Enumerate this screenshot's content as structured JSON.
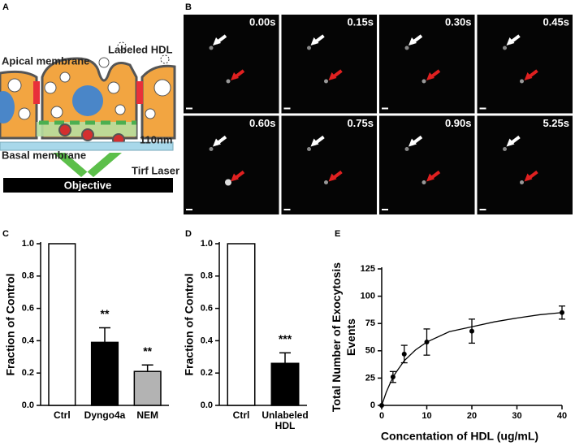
{
  "panel_labels": [
    "A",
    "B",
    "C",
    "D",
    "E"
  ],
  "diagram": {
    "labeled_hdl": "Labeled HDL",
    "apical": "Apical membrane",
    "distance": "110nm",
    "basal": "Basal membrane",
    "laser": "Tirf Laser",
    "objective": "Objective"
  },
  "timelapse": {
    "timestamps": [
      "0.00s",
      "0.15s",
      "0.30s",
      "0.45s",
      "0.60s",
      "0.75s",
      "0.90s",
      "5.25s"
    ]
  },
  "chart_data": [
    {
      "type": "bar",
      "ylabel": "Fraction of Control",
      "categories": [
        "Ctrl",
        "Dyngo4a",
        "NEM"
      ],
      "values": [
        1,
        0.39,
        0.21
      ],
      "errors": [
        null,
        0.09,
        0.04
      ],
      "colors": [
        "#ffffff",
        "#000000",
        "#b3b3b3"
      ],
      "significance": [
        null,
        "**",
        "**"
      ],
      "ylim": [
        0,
        1
      ],
      "yticks": [
        {
          "value": 0,
          "label": "0.0"
        },
        0.2,
        0.4,
        0.6,
        0.8,
        {
          "value": 1,
          "label": "1.0"
        }
      ]
    },
    {
      "type": "bar",
      "ylabel": "Fraction of Control",
      "categories": [
        "Ctrl",
        "Unlabeled HDL"
      ],
      "values": [
        1,
        0.26
      ],
      "errors": [
        null,
        0.065
      ],
      "colors": [
        "#ffffff",
        "#000000"
      ],
      "significance": [
        null,
        "***"
      ],
      "ylim": [
        0,
        1
      ],
      "yticks": [
        {
          "value": 0,
          "label": "0.0"
        },
        0.2,
        0.4,
        0.6,
        0.8,
        {
          "value": 1,
          "label": "1.0"
        }
      ]
    },
    {
      "type": "scatter",
      "xlabel": "Concentation of HDL (ug/mL)",
      "ylabel": "Total Number of Exocytosis Events",
      "series": [
        {
          "mode": "markers",
          "color": "#000000",
          "x": [
            0,
            2.5,
            5,
            10,
            20,
            40
          ],
          "values": [
            0,
            26,
            47,
            58,
            68,
            85
          ],
          "errors": [
            0,
            5,
            8,
            12,
            11,
            6
          ]
        },
        {
          "mode": "line",
          "color": "#000000",
          "x": [
            0,
            1,
            2,
            3,
            5,
            7.5,
            10,
            15,
            20,
            25,
            30,
            35,
            40
          ],
          "values": [
            0,
            12,
            21.5,
            29.2,
            40.9,
            50.8,
            58,
            67.5,
            72,
            76.5,
            80,
            83,
            85
          ]
        }
      ],
      "xlim": [
        0,
        40
      ],
      "xticks": [
        0,
        10,
        20,
        30,
        40
      ],
      "ylim": [
        0,
        125
      ],
      "yticks": [
        0,
        25,
        50,
        75,
        100,
        125
      ]
    }
  ]
}
